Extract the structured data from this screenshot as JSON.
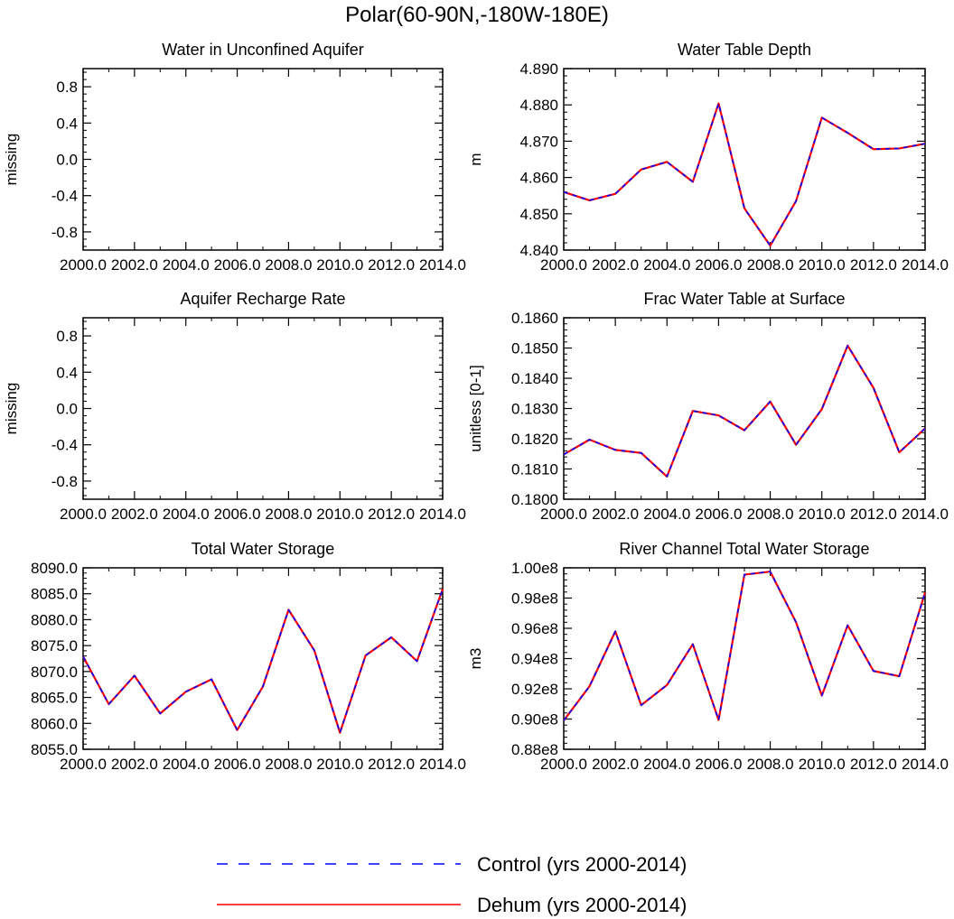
{
  "figure": {
    "title": "Polar(60-90N,-180W-180E)",
    "legend": [
      {
        "label": "Control (yrs 2000-2014)",
        "color": "#0000ff",
        "dash": "dashed"
      },
      {
        "label": "Dehum (yrs 2000-2014)",
        "color": "#ff0000",
        "dash": "solid"
      }
    ]
  },
  "chart_data": [
    {
      "type": "line",
      "title": "Water in Unconfined Aquifer",
      "xlabel": "",
      "ylabel": "missing",
      "xlim": [
        2000,
        2014
      ],
      "ylim": [
        -1,
        1
      ],
      "xticks": [
        2000,
        2002,
        2004,
        2006,
        2008,
        2010,
        2012,
        2014
      ],
      "xtick_labels": [
        "2000.0",
        "2002.0",
        "2004.0",
        "2006.0",
        "2008.0",
        "2010.0",
        "2012.0",
        "2014.0"
      ],
      "yticks": [
        -0.8,
        -0.4,
        0.0,
        0.4,
        0.8
      ],
      "ytick_labels": [
        "-0.8",
        "-0.4",
        "0.0",
        "0.4",
        "0.8"
      ],
      "x": [],
      "series": []
    },
    {
      "type": "line",
      "title": "Water Table Depth",
      "xlabel": "",
      "ylabel": "m",
      "xlim": [
        2000,
        2014
      ],
      "ylim": [
        4.84,
        4.89
      ],
      "xticks": [
        2000,
        2002,
        2004,
        2006,
        2008,
        2010,
        2012,
        2014
      ],
      "xtick_labels": [
        "2000.0",
        "2002.0",
        "2004.0",
        "2006.0",
        "2008.0",
        "2010.0",
        "2012.0",
        "2014.0"
      ],
      "yticks": [
        4.84,
        4.85,
        4.86,
        4.87,
        4.88,
        4.89
      ],
      "ytick_labels": [
        "4.840",
        "4.850",
        "4.860",
        "4.870",
        "4.880",
        "4.890"
      ],
      "x": [
        2000,
        2001,
        2002,
        2003,
        2004,
        2005,
        2006,
        2007,
        2008,
        2009,
        2010,
        2011,
        2012,
        2013,
        2014
      ],
      "series": [
        {
          "name": "Dehum (yrs 2000-2014)",
          "values": [
            4.856,
            4.8537,
            4.8555,
            4.8622,
            4.8643,
            4.8588,
            4.8804,
            4.8515,
            4.8412,
            4.8535,
            4.8765,
            4.8723,
            4.8678,
            4.868,
            4.8693
          ]
        },
        {
          "name": "Control (yrs 2000-2014)",
          "values": [
            4.856,
            4.8537,
            4.8555,
            4.8622,
            4.8643,
            4.8588,
            4.8804,
            4.8515,
            4.8412,
            4.8535,
            4.8765,
            4.8723,
            4.8678,
            4.868,
            4.8693
          ]
        }
      ]
    },
    {
      "type": "line",
      "title": "Aquifer Recharge Rate",
      "xlabel": "",
      "ylabel": "missing",
      "xlim": [
        2000,
        2014
      ],
      "ylim": [
        -1,
        1
      ],
      "xticks": [
        2000,
        2002,
        2004,
        2006,
        2008,
        2010,
        2012,
        2014
      ],
      "xtick_labels": [
        "2000.0",
        "2002.0",
        "2004.0",
        "2006.0",
        "2008.0",
        "2010.0",
        "2012.0",
        "2014.0"
      ],
      "yticks": [
        -0.8,
        -0.4,
        0.0,
        0.4,
        0.8
      ],
      "ytick_labels": [
        "-0.8",
        "-0.4",
        "0.0",
        "0.4",
        "0.8"
      ],
      "x": [],
      "series": []
    },
    {
      "type": "line",
      "title": "Frac Water Table at Surface",
      "xlabel": "",
      "ylabel": "unitless [0-1]",
      "xlim": [
        2000,
        2014
      ],
      "ylim": [
        0.18,
        0.186
      ],
      "xticks": [
        2000,
        2002,
        2004,
        2006,
        2008,
        2010,
        2012,
        2014
      ],
      "xtick_labels": [
        "2000.0",
        "2002.0",
        "2004.0",
        "2006.0",
        "2008.0",
        "2010.0",
        "2012.0",
        "2014.0"
      ],
      "yticks": [
        0.18,
        0.181,
        0.182,
        0.183,
        0.184,
        0.185,
        0.186
      ],
      "ytick_labels": [
        "0.1800",
        "0.1810",
        "0.1820",
        "0.1830",
        "0.1840",
        "0.1850",
        "0.1860"
      ],
      "x": [
        2000,
        2001,
        2002,
        2003,
        2004,
        2005,
        2006,
        2007,
        2008,
        2009,
        2010,
        2011,
        2012,
        2013,
        2014
      ],
      "series": [
        {
          "name": "Dehum (yrs 2000-2014)",
          "values": [
            0.18148,
            0.18197,
            0.18163,
            0.18153,
            0.18075,
            0.18292,
            0.18277,
            0.18228,
            0.18323,
            0.1818,
            0.18298,
            0.18508,
            0.18368,
            0.18155,
            0.18234
          ]
        },
        {
          "name": "Control (yrs 2000-2014)",
          "values": [
            0.18148,
            0.18197,
            0.18163,
            0.18153,
            0.18075,
            0.18292,
            0.18277,
            0.18228,
            0.18323,
            0.1818,
            0.18298,
            0.18508,
            0.18368,
            0.18155,
            0.18234
          ]
        }
      ]
    },
    {
      "type": "line",
      "title": "Total Water Storage",
      "xlabel": "",
      "ylabel": "",
      "xlim": [
        2000,
        2014
      ],
      "ylim": [
        8055,
        8090
      ],
      "xticks": [
        2000,
        2002,
        2004,
        2006,
        2008,
        2010,
        2012,
        2014
      ],
      "xtick_labels": [
        "2000.0",
        "2002.0",
        "2004.0",
        "2006.0",
        "2008.0",
        "2010.0",
        "2012.0",
        "2014.0"
      ],
      "yticks": [
        8055,
        8060,
        8065,
        8070,
        8075,
        8080,
        8085,
        8090
      ],
      "ytick_labels": [
        "8055.0",
        "8060.0",
        "8065.0",
        "8070.0",
        "8075.0",
        "8080.0",
        "8085.0",
        "8090.0"
      ],
      "x": [
        2000,
        2001,
        2002,
        2003,
        2004,
        2005,
        2006,
        2007,
        2008,
        2009,
        2010,
        2011,
        2012,
        2013,
        2014
      ],
      "series": [
        {
          "name": "Dehum (yrs 2000-2014)",
          "values": [
            8072.9,
            8063.7,
            8069.2,
            8061.9,
            8066.1,
            8068.5,
            8058.7,
            8067.1,
            8081.9,
            8074.1,
            8058.2,
            8073.1,
            8076.6,
            8072.0,
            8085.9
          ]
        },
        {
          "name": "Control (yrs 2000-2014)",
          "values": [
            8072.9,
            8063.7,
            8069.2,
            8061.9,
            8066.1,
            8068.5,
            8058.7,
            8067.1,
            8081.9,
            8074.1,
            8058.2,
            8073.1,
            8076.6,
            8072.0,
            8085.9
          ]
        }
      ]
    },
    {
      "type": "line",
      "title": "River Channel Total Water Storage",
      "xlabel": "",
      "ylabel": "m3",
      "xlim": [
        2000,
        2014
      ],
      "ylim": [
        88000000.0,
        100000000.0
      ],
      "xticks": [
        2000,
        2002,
        2004,
        2006,
        2008,
        2010,
        2012,
        2014
      ],
      "xtick_labels": [
        "2000.0",
        "2002.0",
        "2004.0",
        "2006.0",
        "2008.0",
        "2010.0",
        "2012.0",
        "2014.0"
      ],
      "yticks": [
        88000000.0,
        90000000.0,
        92000000.0,
        94000000.0,
        96000000.0,
        98000000.0,
        100000000.0
      ],
      "ytick_labels": [
        "0.88e8",
        "0.90e8",
        "0.92e8",
        "0.94e8",
        "0.96e8",
        "0.98e8",
        "1.00e8"
      ],
      "x": [
        2000,
        2001,
        2002,
        2003,
        2004,
        2005,
        2006,
        2007,
        2008,
        2009,
        2010,
        2011,
        2012,
        2013,
        2014
      ],
      "series": [
        {
          "name": "Dehum (yrs 2000-2014)",
          "values": [
            89900000.0,
            92170000.0,
            95800000.0,
            90920000.0,
            92250000.0,
            94950000.0,
            89940000.0,
            99550000.0,
            99750000.0,
            96400000.0,
            91550000.0,
            96200000.0,
            93180000.0,
            92830000.0,
            98370000.0
          ]
        },
        {
          "name": "Control (yrs 2000-2014)",
          "values": [
            89900000.0,
            92170000.0,
            95800000.0,
            90920000.0,
            92250000.0,
            94950000.0,
            89940000.0,
            99550000.0,
            99750000.0,
            96400000.0,
            91550000.0,
            96200000.0,
            93180000.0,
            92830000.0,
            98370000.0
          ]
        }
      ]
    }
  ]
}
